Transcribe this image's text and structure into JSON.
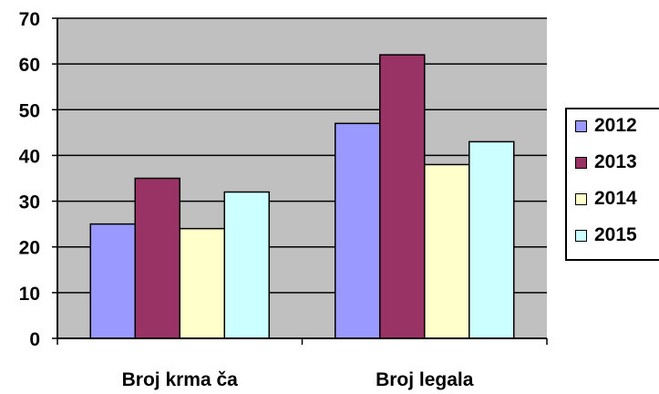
{
  "colors": {
    "plot_background": "#c0c0c0",
    "gridline": "#000000"
  },
  "chart_data": {
    "type": "bar",
    "title": "",
    "xlabel": "",
    "ylabel": "",
    "ylim": [
      0,
      70
    ],
    "yticks": [
      "0",
      "10",
      "20",
      "30",
      "40",
      "50",
      "60",
      "70"
    ],
    "grid": true,
    "legend_position": "right",
    "categories": [
      "Broj krma ča",
      "Broj legala"
    ],
    "series": [
      {
        "name": "2012",
        "color": "#9999ff",
        "values": [
          25,
          47
        ]
      },
      {
        "name": "2013",
        "color": "#993366",
        "values": [
          35,
          62
        ]
      },
      {
        "name": "2014",
        "color": "#ffffcc",
        "values": [
          24,
          38
        ]
      },
      {
        "name": "2015",
        "color": "#ccffff",
        "values": [
          32,
          43
        ]
      }
    ]
  }
}
